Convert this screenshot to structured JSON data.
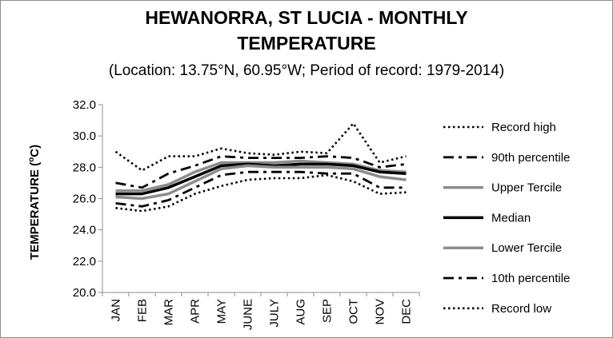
{
  "chart_data": {
    "type": "line",
    "title_line1": "HEWANORRA, ST LUCIA - MONTHLY",
    "title_line2": "TEMPERATURE",
    "subtitle": "(Location: 13.75°N, 60.95°W; Period of record: 1979-2014)",
    "ylabel": "TEMPERATURE (°C)",
    "ylabel_main": "TEMPERATURE (",
    "ylabel_sup": "o",
    "ylabel_end": "C)",
    "xlabel": "",
    "ylim": [
      20,
      32
    ],
    "yticks": [
      "20.0",
      "22.0",
      "24.0",
      "26.0",
      "28.0",
      "30.0",
      "32.0"
    ],
    "categories": [
      "JAN",
      "FEB",
      "MAR",
      "APR",
      "MAY",
      "JUNE",
      "JULY",
      "AUG",
      "SEP",
      "OCT",
      "NOV",
      "DEC"
    ],
    "grid": false,
    "legend": "right",
    "series": [
      {
        "name": "Record high",
        "style": "dotted",
        "color": "#000000",
        "values": [
          29.0,
          27.8,
          28.7,
          28.7,
          29.2,
          28.9,
          28.8,
          29.0,
          28.9,
          30.8,
          28.3,
          28.7
        ]
      },
      {
        "name": "90th percentile",
        "style": "dashdot",
        "color": "#000000",
        "values": [
          27.0,
          26.7,
          27.6,
          28.1,
          28.7,
          28.6,
          28.6,
          28.6,
          28.7,
          28.6,
          28.0,
          28.2
        ]
      },
      {
        "name": "Upper Tercile",
        "style": "solid-gray",
        "color": "#8c8c8c",
        "values": [
          26.5,
          26.5,
          26.9,
          27.7,
          28.3,
          28.3,
          28.3,
          28.4,
          28.3,
          28.2,
          27.8,
          27.7
        ]
      },
      {
        "name": "Median",
        "style": "solid-black",
        "color": "#000000",
        "values": [
          26.3,
          26.3,
          26.7,
          27.4,
          28.1,
          28.2,
          28.1,
          28.2,
          28.2,
          28.1,
          27.7,
          27.6
        ]
      },
      {
        "name": "Lower Tercile",
        "style": "solid-gray",
        "color": "#8c8c8c",
        "values": [
          26.1,
          26.0,
          26.3,
          27.1,
          27.9,
          28.1,
          28.0,
          28.0,
          28.0,
          27.9,
          27.4,
          27.2
        ]
      },
      {
        "name": "10th percentile",
        "style": "dashdot",
        "color": "#000000",
        "values": [
          25.7,
          25.5,
          25.9,
          26.7,
          27.5,
          27.7,
          27.7,
          27.7,
          27.6,
          27.6,
          26.7,
          26.7
        ]
      },
      {
        "name": "Record low",
        "style": "dotted",
        "color": "#000000",
        "values": [
          25.4,
          25.2,
          25.5,
          26.3,
          26.8,
          27.2,
          27.3,
          27.3,
          27.5,
          27.1,
          26.3,
          26.4
        ]
      }
    ]
  }
}
